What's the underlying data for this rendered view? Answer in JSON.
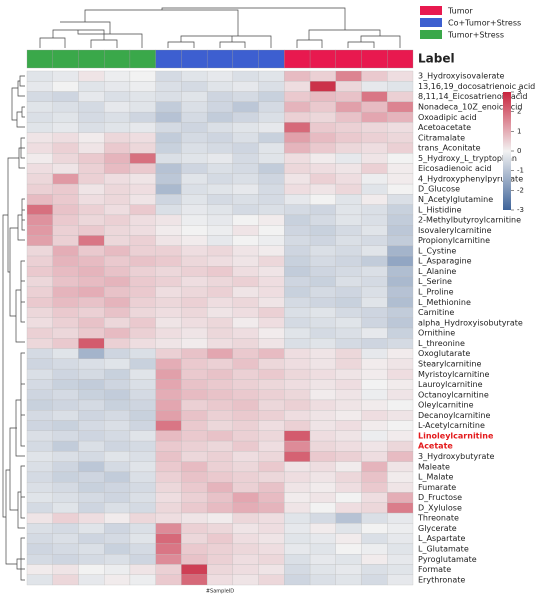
{
  "chart_data": {
    "type": "heatmap",
    "annotation_title": "Label",
    "x_label": "#SampleID",
    "legend": [
      {
        "name": "Tumor",
        "color": "#e8194f"
      },
      {
        "name": "Co+Tumor+Stress",
        "color": "#3d5fd0"
      },
      {
        "name": "Tumor+Stress",
        "color": "#3aa84a"
      }
    ],
    "annotation_colors": [
      "#3aa84a",
      "#3aa84a",
      "#3aa84a",
      "#3aa84a",
      "#3aa84a",
      "#3d5fd0",
      "#3d5fd0",
      "#3d5fd0",
      "#3d5fd0",
      "#3d5fd0",
      "#e8194f",
      "#e8194f",
      "#e8194f",
      "#e8194f",
      "#e8194f"
    ],
    "colormap": [
      "#3e6399",
      "#f2f2f2",
      "#c8243d"
    ],
    "clim": [
      -3,
      3
    ],
    "cticks": [
      -3,
      -2,
      -1,
      0,
      1,
      2,
      3
    ],
    "highlight_rows": [
      35,
      36
    ],
    "highlight_color": "#e31a1c",
    "categories": [
      "3_Hydroxyisovalerate",
      "13,16,19_docosatrienoic acid",
      "8,11,14_Eicosatrienoic acid",
      "Nonadeca_10Z_enoic acid",
      "Oxoadipic acid",
      "Acetoacetate",
      "Citramalate",
      "trans_Aconitate",
      "5_Hydroxy_L_tryptophan",
      "Eicosadienoic acid",
      "4_Hydroxyphenylpyruvate",
      "D_Glucose",
      "N_Acetylglutamine",
      "L_Histidine",
      "2-Methylbutyroylcarnitine",
      "Isovalerylcarnitine",
      "Propionylcarnitine",
      "L_Cystine",
      "L_Asparagine",
      "L_Alanine",
      "L_Serine",
      "L_Proline",
      "L_Methionine",
      "Carnitine",
      "alpha_Hydroxyisobutyrate",
      "Ornithine",
      "L_threonine",
      "Oxoglutarate",
      "Stearylcarnitine",
      "Myristoylcarnitine",
      "Lauroylcarnitine",
      "Octanoylcarnitine",
      "Oleylcarnitine",
      "Decanoylcarnitine",
      "L-Acetylcarnitine",
      "Linoleylcarnitine",
      "Acetate",
      "3_Hydroxybutyrate",
      "Maleate",
      "L_Malate",
      "Fumarate",
      "D_Fructose",
      "D_Xylulose",
      "Threonate",
      "Glycerate",
      "L_Aspartate",
      "L_Glutamate",
      "Pyroglutamate",
      "Formate",
      "Erythronate"
    ],
    "values": [
      [
        -0.3,
        -0.2,
        0.2,
        -0.1,
        0,
        -0.5,
        -0.3,
        -0.2,
        -0.4,
        -0.3,
        0.8,
        0.5,
        1.6,
        0.6,
        0.3
      ],
      [
        -0.2,
        0,
        -0.3,
        -0.2,
        -0.1,
        -0.4,
        -0.5,
        -0.3,
        -0.2,
        -0.4,
        0.3,
        2.8,
        0.4,
        -0.2,
        -0.3
      ],
      [
        -0.5,
        -0.6,
        -0.2,
        -0.4,
        -0.3,
        -0.4,
        -0.3,
        -0.6,
        -0.5,
        -0.7,
        0.6,
        0.8,
        0.7,
        1.8,
        0.5
      ],
      [
        -0.3,
        -0.4,
        -0.5,
        -0.2,
        -0.3,
        -0.8,
        -0.4,
        -0.6,
        -0.9,
        -0.5,
        0.9,
        0.6,
        1.2,
        0.8,
        1.6
      ],
      [
        -0.4,
        -0.3,
        -0.5,
        -0.4,
        -0.6,
        -1.0,
        -0.5,
        -0.8,
        -0.6,
        -0.4,
        0.5,
        0.4,
        0.7,
        1.1,
        0.9
      ],
      [
        -0.3,
        -0.2,
        -0.4,
        -0.3,
        -0.2,
        -0.5,
        -0.6,
        -0.4,
        -0.3,
        -0.2,
        2.0,
        0.6,
        0.5,
        0.4,
        0.3
      ],
      [
        0.2,
        0.3,
        0.1,
        0.4,
        0.3,
        -0.8,
        -0.5,
        -0.6,
        -0.4,
        -0.7,
        1.2,
        0.8,
        0.6,
        0.5,
        0.4
      ],
      [
        0.3,
        0.5,
        0.2,
        0.6,
        0.4,
        -0.7,
        -0.4,
        -0.5,
        -0.6,
        -0.3,
        0.9,
        0.6,
        0.4,
        0.3,
        0.5
      ],
      [
        0.1,
        0.4,
        0.6,
        0.9,
        1.9,
        -0.4,
        -0.3,
        -0.2,
        -0.5,
        -0.3,
        0.3,
        0.1,
        -0.2,
        0.2,
        0
      ],
      [
        0.3,
        0.2,
        0.5,
        0.8,
        0.6,
        -1.0,
        -0.6,
        -0.4,
        -0.5,
        -0.8,
        0.4,
        0.3,
        0.2,
        0.5,
        0.1
      ],
      [
        0.4,
        1.3,
        0.5,
        0.3,
        0.2,
        -0.9,
        -0.3,
        -0.5,
        -0.4,
        -0.6,
        0.2,
        0.5,
        0.3,
        -0.1,
        0.1
      ],
      [
        0.5,
        0.6,
        0.2,
        0.4,
        0.3,
        -1.2,
        -0.4,
        -0.3,
        -0.2,
        -0.5,
        0.3,
        0.2,
        0.4,
        -0.3,
        0
      ],
      [
        0.8,
        0.6,
        0.3,
        0.4,
        0.2,
        -0.6,
        -0.3,
        -0.5,
        -0.4,
        -0.5,
        -0.2,
        0,
        -0.3,
        0.1,
        -0.4
      ],
      [
        1.9,
        0.7,
        0.5,
        0.3,
        0.6,
        -0.4,
        -0.2,
        -0.3,
        -0.5,
        -0.4,
        -0.5,
        -0.6,
        -0.3,
        -0.4,
        -0.7
      ],
      [
        1.4,
        0.6,
        0.4,
        0.5,
        0.3,
        0.2,
        -0.1,
        -0.2,
        0,
        0.1,
        -0.7,
        -0.5,
        -0.3,
        -0.4,
        -0.8
      ],
      [
        1.3,
        0.5,
        0.6,
        0.4,
        0.3,
        0.1,
        0,
        -0.1,
        0.2,
        0,
        -0.6,
        -0.7,
        -0.5,
        -0.3,
        -0.9
      ],
      [
        1.2,
        0.5,
        1.8,
        0.4,
        0.5,
        0.2,
        0.1,
        -0.2,
        0,
        -0.1,
        -0.5,
        -0.6,
        -0.4,
        -0.5,
        -0.8
      ],
      [
        0.4,
        1.0,
        0.6,
        0.8,
        0.5,
        0.5,
        0.3,
        0.4,
        0.2,
        0.1,
        -0.6,
        -0.4,
        -0.5,
        -0.3,
        -1.3
      ],
      [
        0.5,
        0.9,
        0.8,
        0.6,
        0.7,
        0.6,
        0.4,
        0.3,
        0.2,
        0.4,
        -0.7,
        -0.5,
        -0.6,
        -0.8,
        -1.6
      ],
      [
        0.6,
        0.8,
        0.9,
        0.7,
        0.5,
        0.4,
        0.5,
        0.6,
        0.3,
        0.2,
        -0.8,
        -0.6,
        -0.5,
        -0.4,
        -1.1
      ],
      [
        0.4,
        0.7,
        0.8,
        0.9,
        0.6,
        0.5,
        0.3,
        0.4,
        0.5,
        0.3,
        -0.6,
        -0.7,
        -0.4,
        -0.5,
        -1.2
      ],
      [
        0.5,
        0.9,
        1.0,
        0.7,
        0.6,
        0.3,
        0.4,
        0.5,
        0.2,
        0.3,
        -0.7,
        -0.5,
        -0.6,
        -0.4,
        -1.0
      ],
      [
        0.6,
        0.8,
        0.7,
        0.9,
        0.5,
        0.4,
        0.5,
        0.3,
        0.4,
        0.2,
        -0.5,
        -0.6,
        -0.7,
        -0.3,
        -1.1
      ],
      [
        0.4,
        0.6,
        0.5,
        0.7,
        0.4,
        0.3,
        0.4,
        0.2,
        0.3,
        0.5,
        -0.4,
        -0.3,
        -0.5,
        -0.6,
        -0.8
      ],
      [
        0.3,
        0.5,
        0.7,
        0.4,
        0.6,
        0.2,
        0.3,
        0.4,
        0.1,
        0.3,
        -0.5,
        -0.4,
        -0.3,
        -0.6,
        -0.9
      ],
      [
        0.5,
        0.4,
        0.6,
        0.8,
        0.5,
        0.3,
        0.2,
        0.4,
        0.3,
        0.1,
        -0.3,
        -0.5,
        -0.4,
        -0.2,
        -0.7
      ],
      [
        0.4,
        0.6,
        2.2,
        0.5,
        0.3,
        0.2,
        0.1,
        0.3,
        0.4,
        0.2,
        -0.4,
        -0.3,
        -0.5,
        -0.6,
        -0.5
      ],
      [
        -0.5,
        -0.3,
        -1.3,
        -0.6,
        -0.4,
        0.5,
        0.7,
        1.1,
        0.6,
        0.8,
        0.3,
        0.2,
        0.4,
        -0.2,
        0.1
      ],
      [
        -0.6,
        -0.5,
        -0.4,
        -0.3,
        -0.7,
        1.0,
        0.6,
        0.5,
        0.7,
        0.4,
        0.3,
        0.2,
        0.4,
        0.1,
        0.2
      ],
      [
        -0.4,
        -0.6,
        -0.5,
        -0.7,
        -0.3,
        1.2,
        0.6,
        0.7,
        0.5,
        0.6,
        0.4,
        0.3,
        0.2,
        0.1,
        0.3
      ],
      [
        -0.5,
        -0.7,
        -0.8,
        -0.6,
        -0.4,
        1.1,
        0.7,
        0.6,
        0.5,
        0.4,
        0.3,
        0.2,
        0.3,
        0,
        0.1
      ],
      [
        -0.6,
        -0.5,
        -0.7,
        -0.8,
        -0.5,
        1.0,
        0.8,
        0.7,
        0.6,
        0.5,
        0.4,
        0.1,
        0.2,
        -0.1,
        0.2
      ],
      [
        -0.7,
        -0.6,
        -0.5,
        -0.7,
        -0.6,
        1.1,
        0.5,
        0.6,
        0.7,
        0.4,
        0.5,
        0.3,
        0.2,
        0.1,
        0
      ],
      [
        -0.5,
        -0.4,
        -0.6,
        -0.5,
        -0.7,
        1.2,
        0.7,
        0.5,
        0.6,
        0.5,
        0.3,
        0.2,
        0.1,
        0.3,
        0.2
      ],
      [
        -0.6,
        -0.7,
        -0.5,
        -0.4,
        -0.6,
        1.8,
        0.6,
        0.4,
        0.5,
        0.3,
        0.5,
        0.2,
        0.3,
        0.1,
        0
      ],
      [
        -0.4,
        -0.5,
        -0.6,
        -0.5,
        -0.3,
        0.8,
        0.6,
        0.7,
        0.5,
        0.4,
        2.2,
        0.3,
        0.2,
        -0.1,
        0.1
      ],
      [
        -0.5,
        -0.8,
        -0.4,
        -0.6,
        -0.5,
        0.6,
        0.5,
        0.4,
        0.6,
        0.3,
        1.5,
        0.4,
        0.3,
        0.2,
        0.4
      ],
      [
        -0.3,
        -0.4,
        -0.5,
        -0.3,
        -0.4,
        0.7,
        0.4,
        0.5,
        0.3,
        0.4,
        2.1,
        0.6,
        0.5,
        0.3,
        0.8
      ],
      [
        -0.4,
        -0.6,
        -0.9,
        -0.5,
        -0.3,
        0.6,
        0.8,
        0.5,
        0.4,
        0.6,
        0.2,
        0.3,
        0.1,
        0.9,
        0.2
      ],
      [
        -0.5,
        -0.7,
        -0.6,
        -0.8,
        -0.4,
        0.5,
        0.7,
        0.6,
        0.5,
        0.4,
        0.3,
        0.2,
        0.4,
        0.7,
        0.1
      ],
      [
        -0.4,
        -0.5,
        -0.7,
        -0.6,
        -0.5,
        0.4,
        0.6,
        0.9,
        0.5,
        0.7,
        0.2,
        0.1,
        0.3,
        0.6,
        0.2
      ],
      [
        -0.3,
        -0.4,
        -0.5,
        -0.6,
        -0.4,
        0.3,
        0.5,
        0.7,
        1.1,
        0.8,
        0.1,
        0.2,
        0,
        0.3,
        1.0
      ],
      [
        -0.5,
        -0.3,
        -0.6,
        -0.4,
        -0.5,
        0.4,
        0.6,
        0.8,
        1.0,
        0.9,
        0.2,
        0,
        0.3,
        0.4,
        1.7
      ],
      [
        0.2,
        0.5,
        0.3,
        0.1,
        0.4,
        0.3,
        0.2,
        0.1,
        0.4,
        0.3,
        -0.3,
        -0.5,
        -1.0,
        -0.4,
        -0.2
      ],
      [
        -0.4,
        -0.5,
        -0.3,
        -0.6,
        -0.4,
        1.5,
        0.5,
        0.4,
        0.2,
        0.3,
        -0.2,
        0.1,
        -0.3,
        0,
        -0.1
      ],
      [
        -0.5,
        -0.4,
        -0.6,
        -0.5,
        -0.3,
        2.0,
        0.4,
        0.6,
        0.3,
        0.2,
        -0.3,
        -0.2,
        0.1,
        -0.4,
        -0.2
      ],
      [
        -0.6,
        -0.5,
        -0.4,
        -0.7,
        -0.5,
        1.8,
        0.6,
        0.5,
        0.4,
        0.3,
        -0.2,
        -0.3,
        0,
        -0.1,
        -0.3
      ],
      [
        -0.5,
        -0.6,
        -0.5,
        -0.4,
        -0.6,
        1.5,
        0.7,
        0.5,
        0.3,
        0.4,
        -0.4,
        -0.2,
        -0.3,
        0.1,
        -0.2
      ],
      [
        0.1,
        0.2,
        0,
        -0.1,
        0.2,
        0.5,
        2.6,
        0.4,
        0.3,
        0.2,
        -0.5,
        -0.3,
        -0.2,
        -0.4,
        -0.3
      ],
      [
        -0.3,
        0.4,
        -0.2,
        0.1,
        -0.1,
        0.6,
        2.0,
        0.3,
        0.2,
        0.4,
        -0.6,
        -0.4,
        -0.3,
        -0.5,
        -0.2
      ]
    ]
  }
}
